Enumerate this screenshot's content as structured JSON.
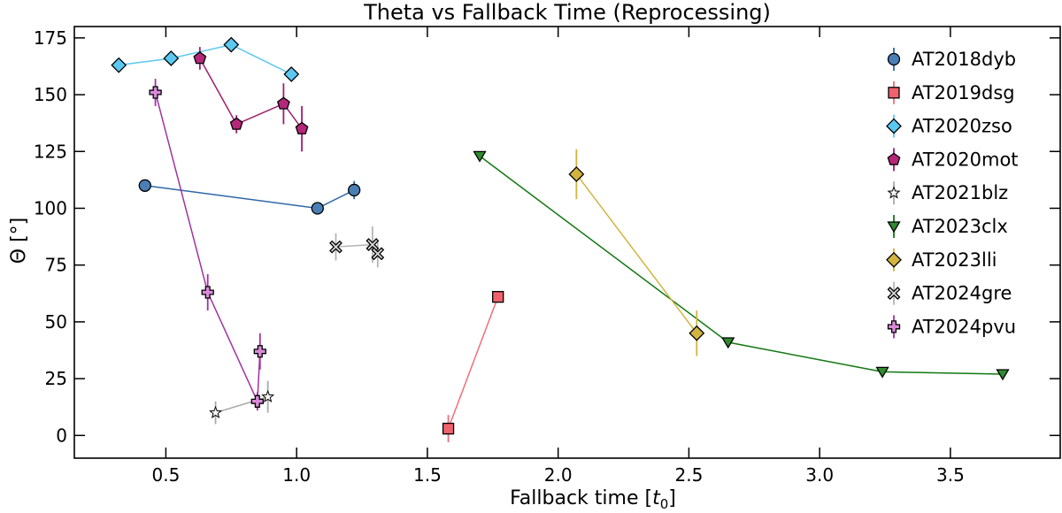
{
  "chart_data": {
    "type": "scatter",
    "title": "Theta vs Fallback Time (Reprocessing)",
    "xlabel_main": "Fallback time [",
    "xlabel_var": "t",
    "xlabel_sub": "0",
    "xlabel_end": "]",
    "ylabel": "Θ [°]",
    "xlim": [
      0.15,
      3.92
    ],
    "ylim": [
      -10,
      180
    ],
    "xticks": [
      0.5,
      1.0,
      1.5,
      2.0,
      2.5,
      3.0,
      3.5
    ],
    "xtick_labels": [
      "0.5",
      "1.0",
      "1.5",
      "2.0",
      "2.5",
      "3.0",
      "3.5"
    ],
    "yticks": [
      0,
      25,
      50,
      75,
      100,
      125,
      150,
      175
    ],
    "ytick_labels": [
      "0",
      "25",
      "50",
      "75",
      "100",
      "125",
      "150",
      "175"
    ],
    "legend_position": "top-right",
    "series": [
      {
        "name": "AT2018dyb",
        "marker": "circle",
        "color": "#4a7fb5",
        "line_color": "#2f67a6",
        "x": [
          0.42,
          1.08,
          1.22
        ],
        "y": [
          110,
          100,
          108
        ],
        "yerr": [
          1,
          1,
          4
        ]
      },
      {
        "name": "AT2019dsg",
        "marker": "square",
        "color": "#f0636e",
        "line_color": "#ee6f7b",
        "x": [
          1.58,
          1.77
        ],
        "y": [
          3,
          61
        ],
        "yerr": [
          6,
          1
        ]
      },
      {
        "name": "AT2020zso",
        "marker": "diamond",
        "color": "#5bc8f2",
        "line_color": "#5bc8f2",
        "x": [
          0.32,
          0.52,
          0.75,
          0.98
        ],
        "y": [
          163,
          166,
          172,
          159
        ],
        "yerr": [
          2,
          1,
          1,
          1
        ]
      },
      {
        "name": "AT2020mot",
        "marker": "pentagon",
        "color": "#b5277a",
        "line_color": "#9e1f6b",
        "x": [
          0.63,
          0.77,
          0.95,
          1.02
        ],
        "y": [
          166,
          137,
          146,
          135
        ],
        "yerr": [
          5,
          4,
          9,
          10
        ]
      },
      {
        "name": "AT2021blz",
        "marker": "star",
        "color": "#f5f5f5",
        "line_color": "#aaaaaa",
        "x": [
          0.69,
          0.89
        ],
        "y": [
          10,
          17
        ],
        "yerr": [
          5,
          7
        ]
      },
      {
        "name": "AT2023clx",
        "marker": "triangle-down",
        "color": "#2e8b2e",
        "line_color": "#117811",
        "x": [
          1.7,
          2.65,
          3.24,
          3.7
        ],
        "y": [
          123,
          41,
          28,
          27
        ],
        "yerr": [
          1,
          1,
          2,
          1
        ]
      },
      {
        "name": "AT2023lli",
        "marker": "diamond",
        "color": "#d2b440",
        "line_color": "#d2b440",
        "x": [
          2.07,
          2.53
        ],
        "y": [
          115,
          45
        ],
        "yerr": [
          11,
          10
        ]
      },
      {
        "name": "AT2024gre",
        "marker": "x",
        "color": "#d9d9d9",
        "line_color": "#b5b5b5",
        "x": [
          1.15,
          1.29,
          1.31
        ],
        "y": [
          83,
          84,
          80
        ],
        "yerr": [
          6,
          8,
          6
        ]
      },
      {
        "name": "AT2024pvu",
        "marker": "plus",
        "color": "#d88ad8",
        "line_color": "#a132a1",
        "x": [
          0.46,
          0.66,
          0.85,
          0.86
        ],
        "y": [
          151,
          63,
          15,
          37
        ],
        "yerr": [
          6,
          8,
          4,
          8
        ],
        "line_order": [
          0,
          1,
          2,
          3
        ]
      }
    ]
  }
}
